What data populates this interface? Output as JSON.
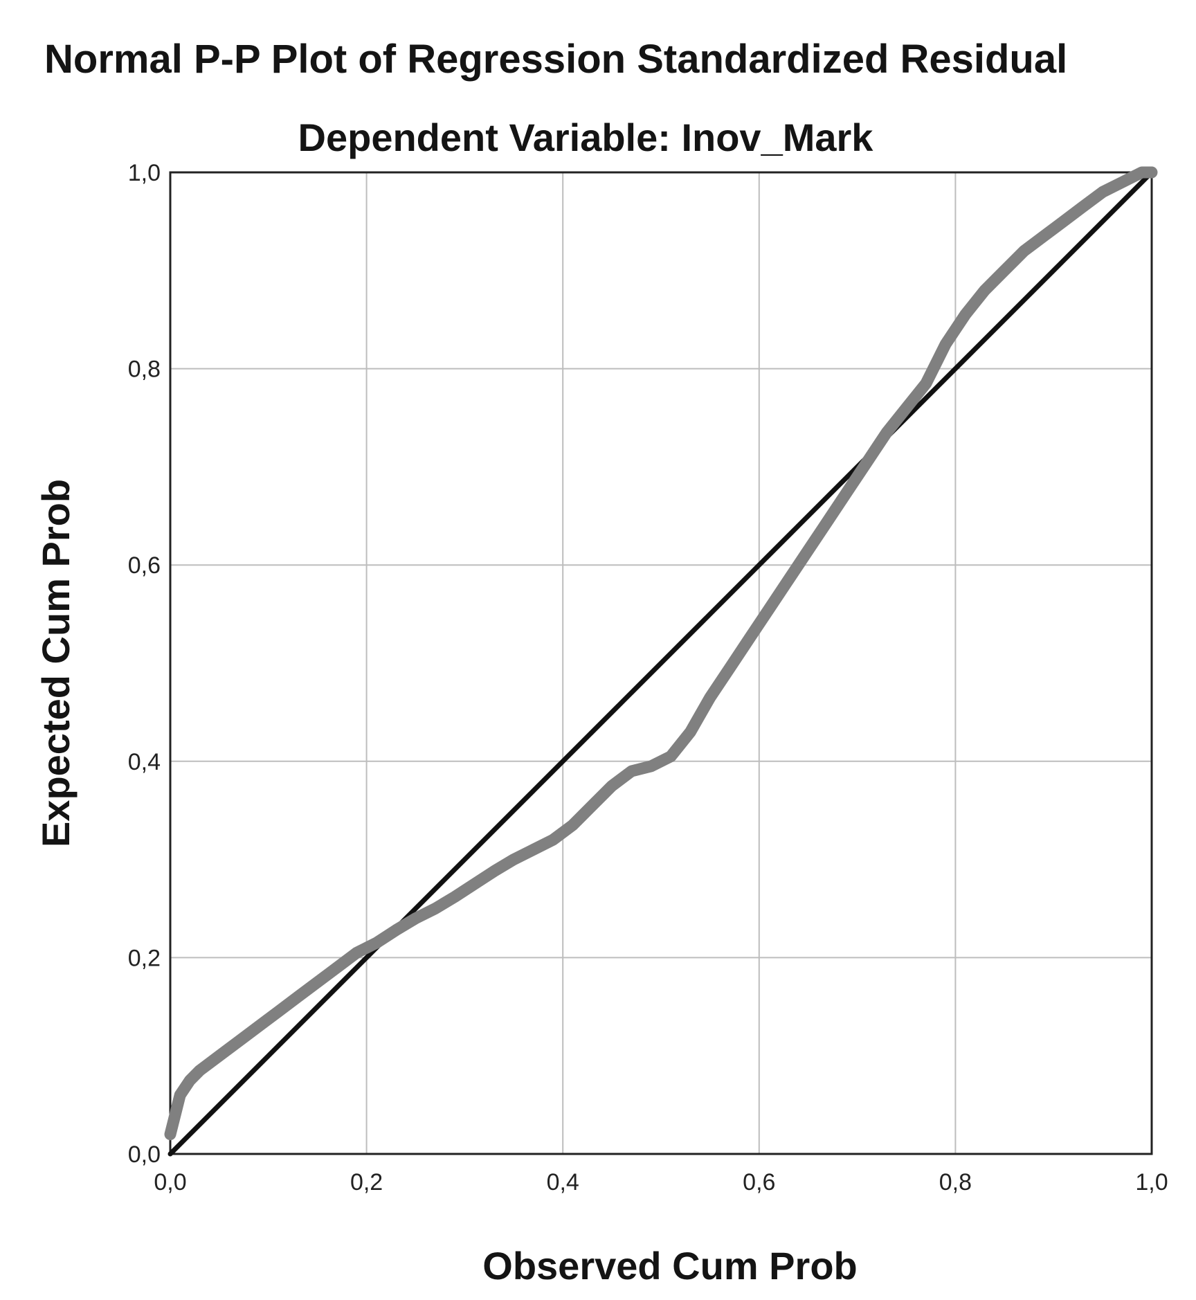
{
  "chart_data": {
    "type": "line",
    "title": "Normal P-P Plot of Regression Standardized Residual",
    "subtitle": "Dependent Variable: Inov_Mark",
    "xlabel": "Observed Cum Prob",
    "ylabel": "Expected Cum Prob",
    "xlim": [
      0.0,
      1.0
    ],
    "ylim": [
      0.0,
      1.0
    ],
    "x_ticks": [
      "0,0",
      "0,2",
      "0,4",
      "0,6",
      "0,8",
      "1,0"
    ],
    "y_ticks": [
      "0,0",
      "0,2",
      "0,4",
      "0,6",
      "0,8",
      "1,0"
    ],
    "grid": true,
    "reference_line": {
      "x": [
        0.0,
        1.0
      ],
      "y": [
        0.0,
        1.0
      ],
      "color": "#111111"
    },
    "series": [
      {
        "color": "#808080",
        "x": [
          0.0,
          0.005,
          0.01,
          0.02,
          0.03,
          0.05,
          0.07,
          0.09,
          0.11,
          0.13,
          0.15,
          0.17,
          0.19,
          0.21,
          0.23,
          0.25,
          0.27,
          0.29,
          0.31,
          0.33,
          0.35,
          0.37,
          0.39,
          0.41,
          0.43,
          0.45,
          0.47,
          0.49,
          0.51,
          0.53,
          0.55,
          0.57,
          0.59,
          0.61,
          0.63,
          0.65,
          0.67,
          0.69,
          0.71,
          0.73,
          0.75,
          0.77,
          0.79,
          0.81,
          0.83,
          0.85,
          0.87,
          0.89,
          0.91,
          0.93,
          0.95,
          0.97,
          0.99,
          1.0
        ],
        "y": [
          0.02,
          0.04,
          0.06,
          0.075,
          0.085,
          0.1,
          0.115,
          0.13,
          0.145,
          0.16,
          0.175,
          0.19,
          0.205,
          0.215,
          0.228,
          0.24,
          0.25,
          0.262,
          0.275,
          0.288,
          0.3,
          0.31,
          0.32,
          0.335,
          0.355,
          0.375,
          0.39,
          0.395,
          0.405,
          0.43,
          0.465,
          0.495,
          0.525,
          0.555,
          0.585,
          0.615,
          0.645,
          0.675,
          0.705,
          0.735,
          0.76,
          0.785,
          0.825,
          0.855,
          0.88,
          0.9,
          0.92,
          0.935,
          0.95,
          0.965,
          0.98,
          0.99,
          1.0,
          1.0
        ]
      }
    ]
  }
}
